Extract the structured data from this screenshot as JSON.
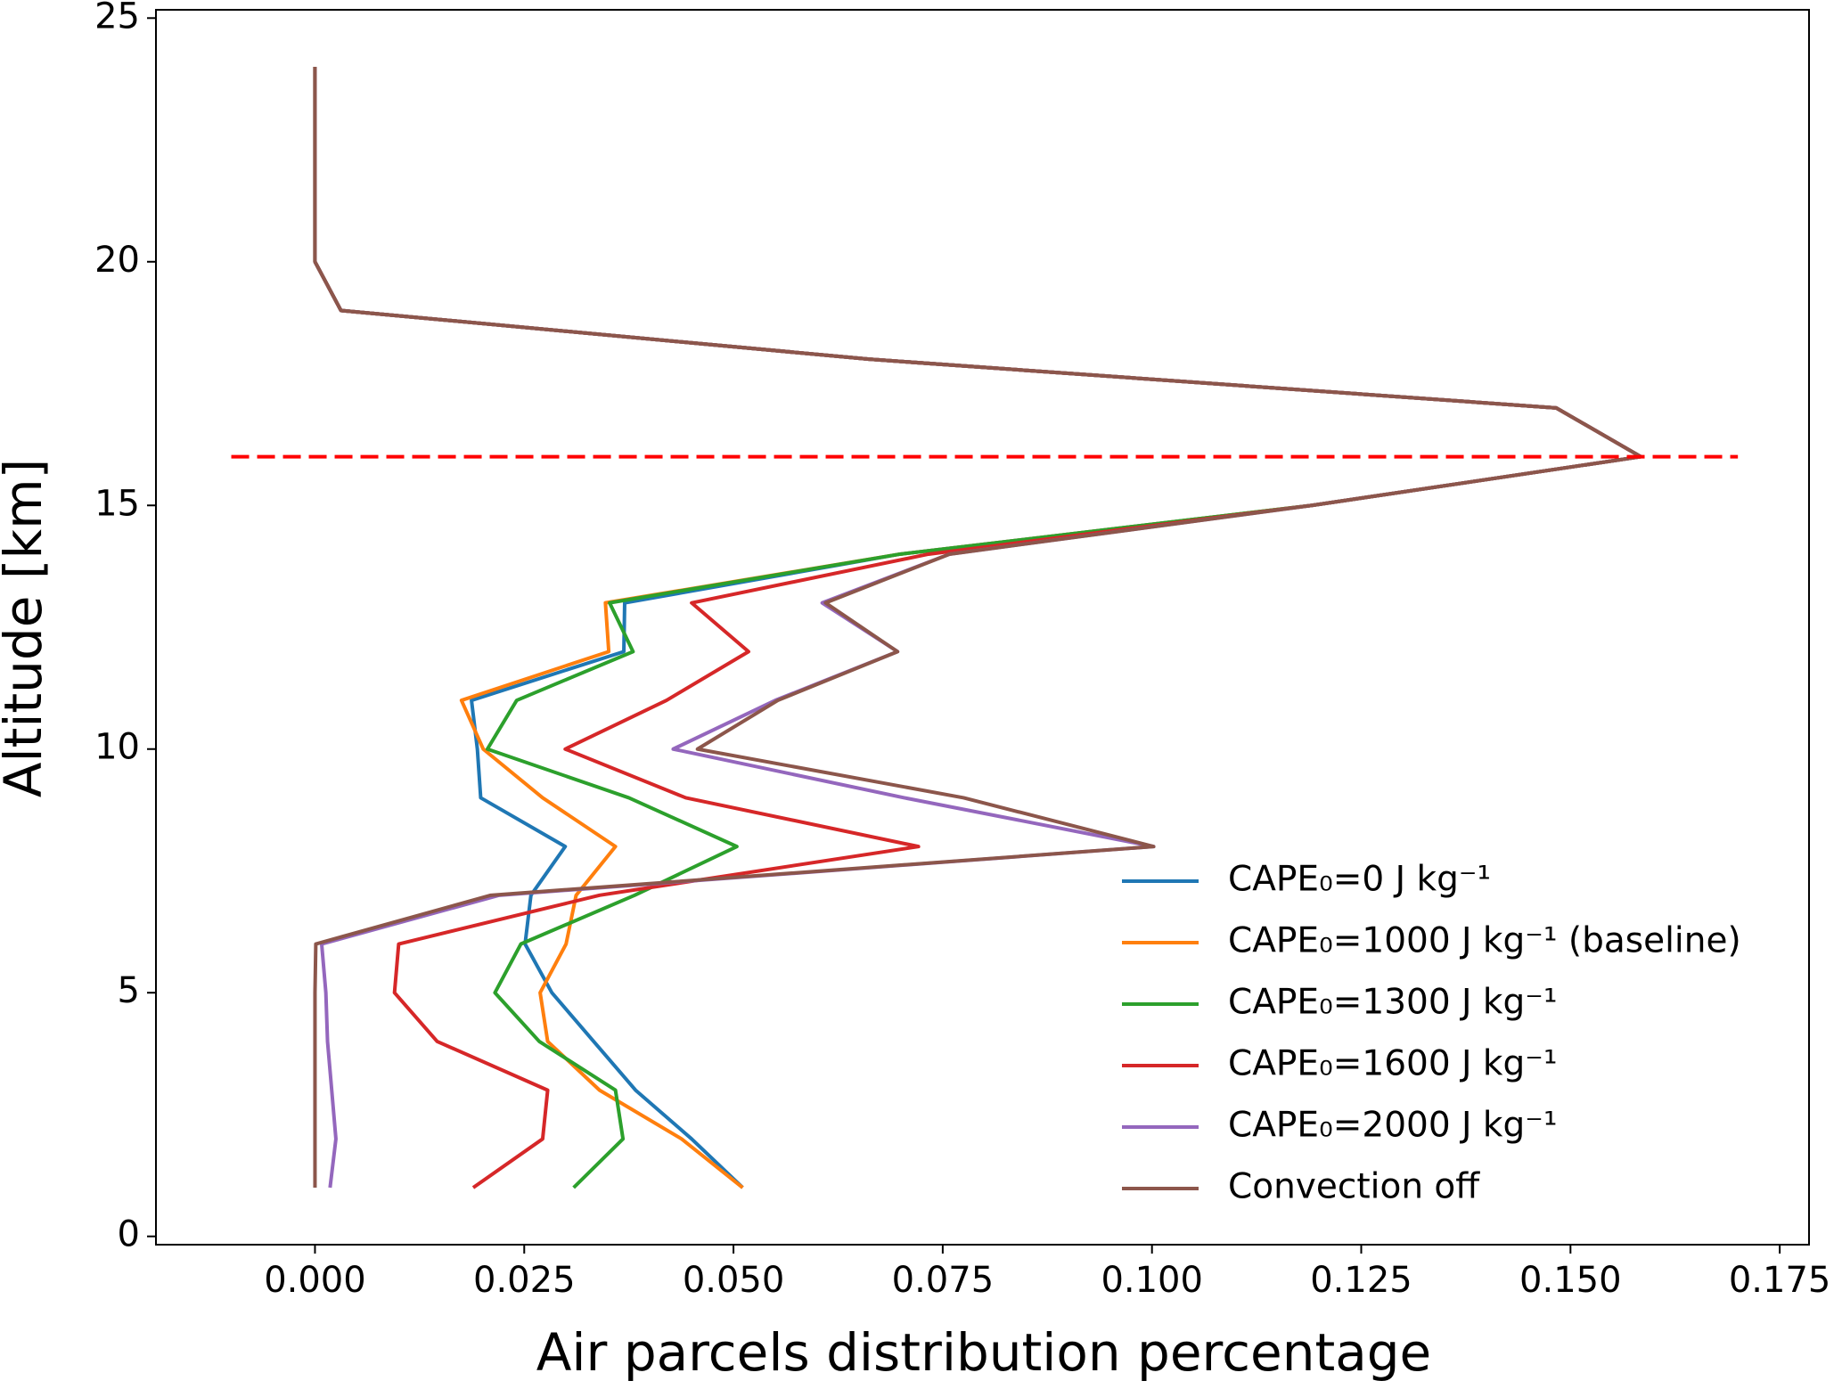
{
  "chart_data": {
    "type": "line",
    "xlabel": "Air parcels distribution percentage",
    "ylabel": "Altitude [km]",
    "y": [
      1,
      2,
      3,
      4,
      5,
      6,
      7,
      8,
      9,
      10,
      11,
      12,
      13,
      14,
      15,
      16,
      17,
      18,
      19,
      20,
      21,
      22,
      23,
      24
    ],
    "series": [
      {
        "name": "CAPE₀=0 J kg⁻¹",
        "color": "#1f77b4",
        "values": [
          0.0511,
          0.045,
          0.0383,
          0.0333,
          0.0283,
          0.0251,
          0.0258,
          0.0299,
          0.0198,
          0.0194,
          0.0187,
          0.0369,
          0.037,
          0.0699,
          0.1191,
          0.1584,
          0.1483,
          0.0662,
          0.0031,
          0,
          0,
          0,
          0,
          0
        ]
      },
      {
        "name": "CAPE₀=1000 J kg⁻¹ (baseline)",
        "color": "#ff7f0e",
        "values": [
          0.0511,
          0.0438,
          0.034,
          0.0278,
          0.0269,
          0.03,
          0.0312,
          0.0359,
          0.0272,
          0.0201,
          0.0175,
          0.0351,
          0.0347,
          0.0699,
          0.1191,
          0.1584,
          0.1483,
          0.0662,
          0.0031,
          0,
          0,
          0,
          0,
          0
        ]
      },
      {
        "name": "CAPE₀=1300 J kg⁻¹",
        "color": "#2ca02c",
        "values": [
          0.0309,
          0.0368,
          0.0359,
          0.0268,
          0.0215,
          0.0246,
          0.0382,
          0.0504,
          0.0375,
          0.0206,
          0.0241,
          0.038,
          0.0352,
          0.0699,
          0.1191,
          0.1584,
          0.1483,
          0.0662,
          0.0031,
          0,
          0,
          0,
          0,
          0
        ]
      },
      {
        "name": "CAPE₀=1600 J kg⁻¹",
        "color": "#d62728",
        "values": [
          0.0189,
          0.0272,
          0.0278,
          0.0146,
          0.0095,
          0.01,
          0.034,
          0.0721,
          0.0443,
          0.0299,
          0.042,
          0.0518,
          0.045,
          0.0733,
          0.1191,
          0.1584,
          0.1483,
          0.0662,
          0.0031,
          0,
          0,
          0,
          0,
          0
        ]
      },
      {
        "name": "CAPE₀=2000 J kg⁻¹",
        "color": "#9467bd",
        "values": [
          0.0018,
          0.0025,
          0.002,
          0.0015,
          0.0013,
          0.0008,
          0.022,
          0.1002,
          0.0704,
          0.0428,
          0.055,
          0.0696,
          0.0606,
          0.0758,
          0.1191,
          0.1584,
          0.1483,
          0.0662,
          0.0031,
          0,
          0,
          0,
          0,
          0
        ]
      },
      {
        "name": "Convection off",
        "color": "#8c564b",
        "values": [
          0,
          0,
          0,
          0,
          0,
          0.0001,
          0.021,
          0.1002,
          0.0775,
          0.0457,
          0.0553,
          0.0696,
          0.061,
          0.0758,
          0.1191,
          0.1584,
          0.1483,
          0.0662,
          0.0031,
          0,
          0,
          0,
          0,
          0
        ]
      }
    ],
    "hline": {
      "y": 16,
      "xmin": -0.01,
      "xmax": 0.17,
      "color": "#ff0000"
    },
    "xlim": [
      -0.019,
      0.1785
    ],
    "ylim": [
      -0.17,
      25.17
    ],
    "xticks": [
      {
        "value": 0,
        "label": "0.000"
      },
      {
        "value": 0.025,
        "label": "0.025"
      },
      {
        "value": 0.05,
        "label": "0.050"
      },
      {
        "value": 0.075,
        "label": "0.075"
      },
      {
        "value": 0.1,
        "label": "0.100"
      },
      {
        "value": 0.125,
        "label": "0.125"
      },
      {
        "value": 0.15,
        "label": "0.150"
      },
      {
        "value": 0.175,
        "label": "0.175"
      }
    ],
    "yticks": [
      0,
      5,
      10,
      15,
      20,
      25
    ],
    "legend": "lower right"
  }
}
